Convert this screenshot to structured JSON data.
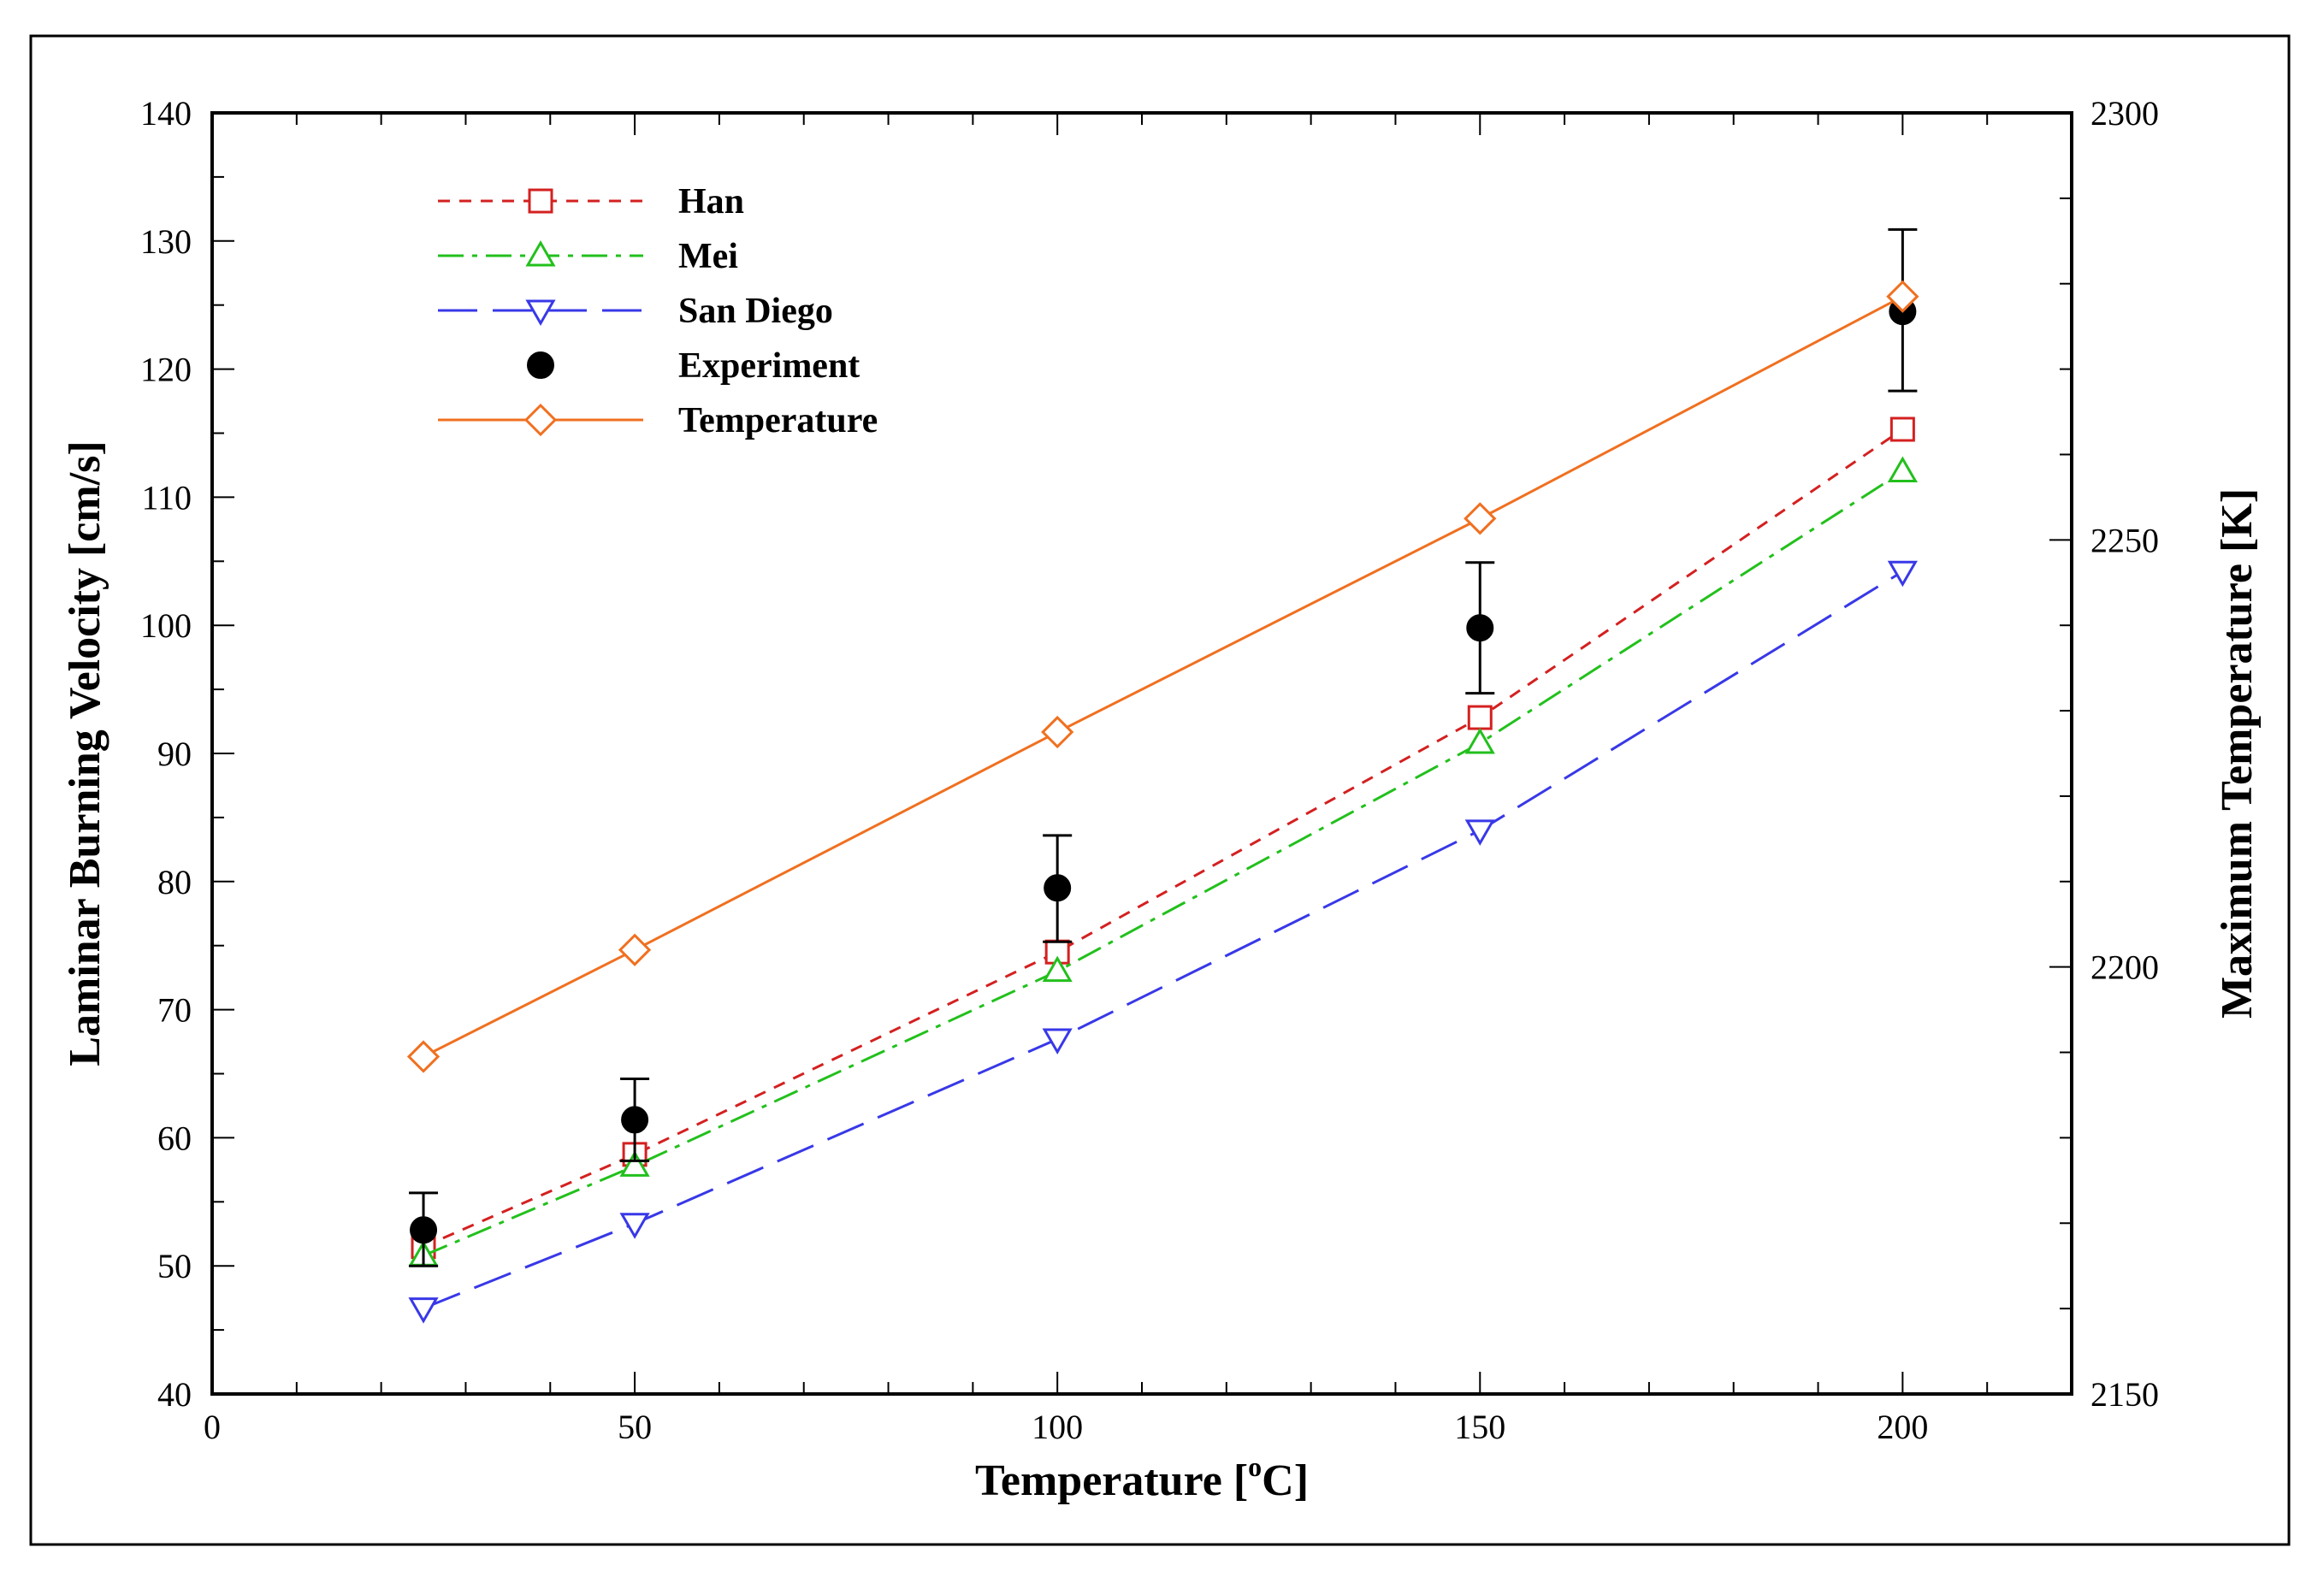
{
  "chart_data": {
    "type": "line",
    "x": [
      25,
      50,
      100,
      150,
      200
    ],
    "xlabel": "Temperature [",
    "xlabel_sup": "o",
    "xlabel_end": "C]",
    "ylabel": "Laminar Burning Velocity [cm/s]",
    "y2label": "Maximum Temperature [K]",
    "xlim": [
      0,
      220
    ],
    "ylim": [
      40,
      140
    ],
    "y2lim": [
      2150,
      2300
    ],
    "xticks": [
      "0",
      "50",
      "100",
      "150",
      "200"
    ],
    "yticks": [
      "40",
      "50",
      "60",
      "70",
      "80",
      "90",
      "100",
      "110",
      "120",
      "130",
      "140"
    ],
    "y2ticks": [
      "2150",
      "2200",
      "2250",
      "2300"
    ],
    "series": [
      {
        "name": "Han",
        "axis": "left",
        "color": "#d42020",
        "marker": "square",
        "dash": "14,11",
        "values": [
          51.5,
          58.7,
          74.5,
          92.8,
          115.3
        ]
      },
      {
        "name": "Mei",
        "axis": "left",
        "color": "#22c01c",
        "marker": "triangle-up",
        "dash": "30,10,6,10",
        "values": [
          50.8,
          57.8,
          73.0,
          90.8,
          112.0
        ]
      },
      {
        "name": "San Diego",
        "axis": "left",
        "color": "#3838e8",
        "marker": "triangle-down",
        "dash": "46,18",
        "values": [
          46.7,
          53.3,
          67.7,
          84.0,
          104.2
        ]
      },
      {
        "name": "Experiment",
        "axis": "left",
        "color": "#000000",
        "marker": "circle",
        "dash": "none",
        "values": [
          52.8,
          61.4,
          79.5,
          99.8,
          124.5
        ],
        "err_low": [
          50.0,
          58.2,
          75.3,
          94.7,
          118.3
        ],
        "err_high": [
          55.7,
          64.6,
          83.6,
          104.9,
          130.9
        ]
      },
      {
        "name": "Temperature",
        "axis": "right",
        "color": "#f07020",
        "marker": "diamond",
        "dash": "solid",
        "values": [
          2189.5,
          2202.0,
          2227.5,
          2252.5,
          2278.5
        ]
      }
    ]
  }
}
